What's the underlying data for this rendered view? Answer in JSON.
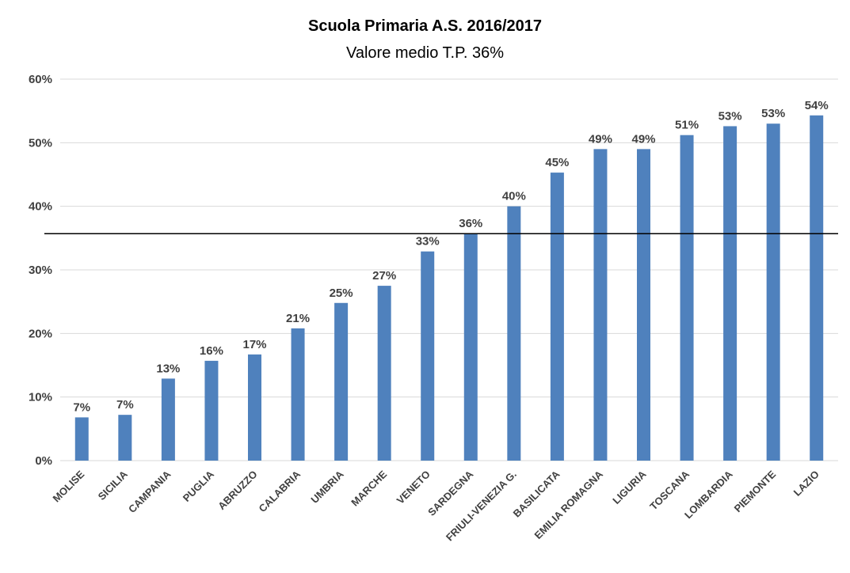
{
  "chart_data": {
    "type": "bar",
    "title": "Scuola Primaria A.S. 2016/2017",
    "subtitle": "Valore medio T.P. 36%",
    "categories": [
      "MOLISE",
      "SICILIA",
      "CAMPANIA",
      "PUGLIA",
      "ABRUZZO",
      "CALABRIA",
      "UMBRIA",
      "MARCHE",
      "VENETO",
      "SARDEGNA",
      "FRIULI-VENEZIA G.",
      "BASILICATA",
      "EMILIA ROMAGNA",
      "LIGURIA",
      "TOSCANA",
      "LOMBARDIA",
      "PIEMONTE",
      "LAZIO"
    ],
    "values": [
      6.8,
      7.2,
      12.9,
      15.7,
      16.7,
      20.8,
      24.8,
      27.5,
      32.9,
      35.7,
      40.0,
      45.3,
      49.0,
      49.0,
      51.2,
      52.6,
      53.0,
      54.3
    ],
    "data_labels": [
      "7%",
      "7%",
      "13%",
      "16%",
      "17%",
      "21%",
      "25%",
      "27%",
      "33%",
      "36%",
      "40%",
      "45%",
      "49%",
      "49%",
      "51%",
      "53%",
      "53%",
      "54%"
    ],
    "ylim": [
      0,
      60
    ],
    "yticks": [
      0,
      10,
      20,
      30,
      40,
      50,
      60
    ],
    "ytick_labels": [
      "0%",
      "10%",
      "20%",
      "30%",
      "40%",
      "50%",
      "60%"
    ],
    "reference_line": 35.7,
    "grid": true,
    "legend": "none",
    "bar_color": "#4F81BD",
    "gridline_color": "#D9D9D9",
    "reference_line_color": "#000000",
    "label_color": "#404040",
    "xlabel": "",
    "ylabel": ""
  }
}
